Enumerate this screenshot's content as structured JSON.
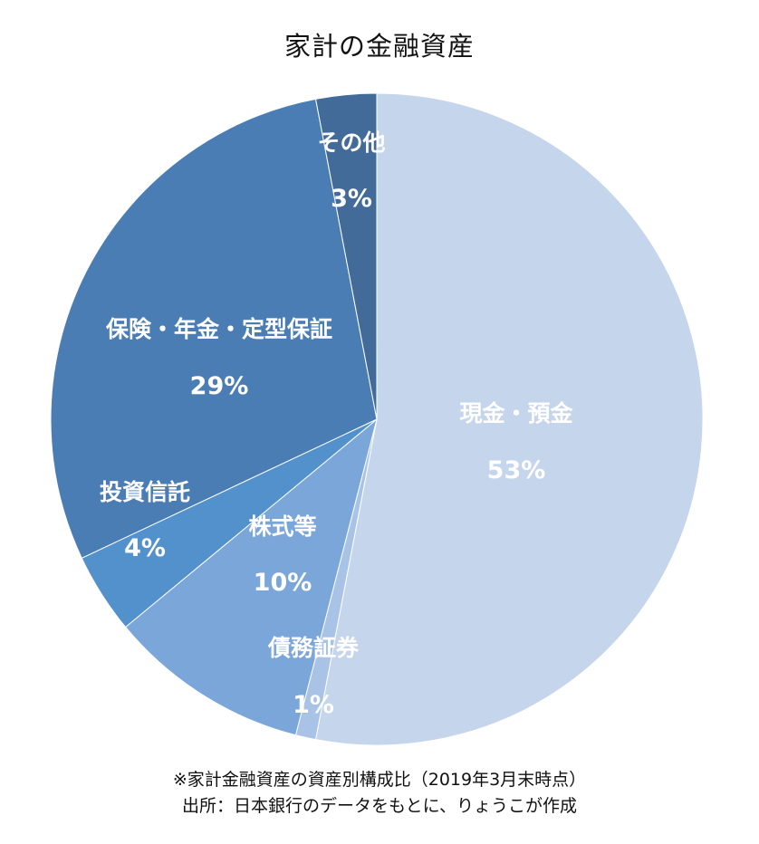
{
  "chart_data": {
    "type": "pie",
    "title": "家計の金融資産",
    "slices": [
      {
        "label": "現金・預金",
        "value": 53,
        "value_label": "53%",
        "color": "#c5d5eb"
      },
      {
        "label": "債務証券",
        "value": 1,
        "value_label": "1%",
        "color": "#a8c3e6"
      },
      {
        "label": "株式等",
        "value": 10,
        "value_label": "10%",
        "color": "#7aa6da"
      },
      {
        "label": "投資信託",
        "value": 4,
        "value_label": "4%",
        "color": "#5291cc"
      },
      {
        "label": "保険・年金・定型保証",
        "value": 29,
        "value_label": "29%",
        "color": "#4b7db5"
      },
      {
        "label": "その他",
        "value": 3,
        "value_label": "3%",
        "color": "#436b9a"
      }
    ]
  },
  "footnote": {
    "line1": "※家計金融資産の資産別構成比（2019年3月末時点）",
    "line2": "出所：日本銀行のデータをもとに、りょうこが作成"
  }
}
